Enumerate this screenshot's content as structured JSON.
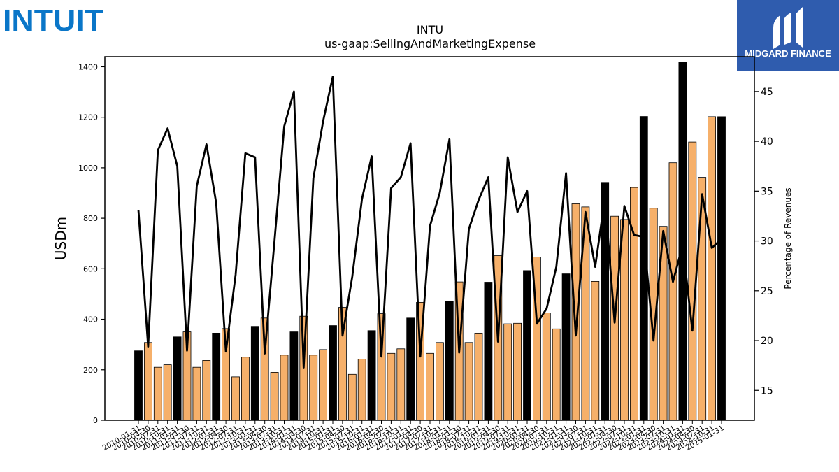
{
  "brand": {
    "left_logo_text": "INTUIT",
    "right_logo_text": "MIDGARD FINANCE",
    "left_logo_color": "#0a76c8",
    "right_logo_bg": "#2f5cae"
  },
  "chart_data": {
    "type": "bar",
    "title": "INTU",
    "subtitle": "us-gaap:SellingAndMarketingExpense",
    "ylabel": "USDm",
    "ylabel_right": "Percentage of Revenues",
    "ylim": [
      0,
      1440
    ],
    "y2lim": [
      12,
      48.5
    ],
    "yticks": [
      0,
      200,
      400,
      600,
      800,
      1000,
      1200,
      1400
    ],
    "y2ticks": [
      15,
      20,
      25,
      30,
      35,
      40,
      45
    ],
    "colors": {
      "annual": "#000000",
      "quarterly": "#f6b06a",
      "line": "#000000"
    },
    "categories": [
      "2010-01-31",
      "2010-04-30",
      "2010-07-31",
      "2010-10-31",
      "2011-01-31",
      "2011-04-30",
      "2011-07-31",
      "2011-10-31",
      "2012-01-31",
      "2012-04-30",
      "2012-07-31",
      "2012-10-31",
      "2013-01-31",
      "2013-04-30",
      "2013-07-31",
      "2013-10-31",
      "2014-01-31",
      "2014-04-30",
      "2014-07-31",
      "2014-10-31",
      "2015-01-31",
      "2015-04-30",
      "2015-07-31",
      "2015-10-31",
      "2016-01-31",
      "2016-04-30",
      "2016-07-31",
      "2016-10-31",
      "2017-01-31",
      "2017-04-30",
      "2017-07-31",
      "2017-10-31",
      "2018-01-31",
      "2018-04-30",
      "2018-07-31",
      "2018-10-31",
      "2019-01-31",
      "2019-04-30",
      "2019-07-31",
      "2019-10-31",
      "2020-01-31",
      "2020-04-30",
      "2020-07-31",
      "2020-10-31",
      "2021-01-31",
      "2021-04-30",
      "2021-07-31",
      "2021-10-31",
      "2022-01-31",
      "2022-04-30",
      "2022-07-31",
      "2022-10-31",
      "2023-01-31",
      "2023-04-30",
      "2023-07-31",
      "2023-10-31",
      "2024-01-31",
      "2024-04-30",
      "2024-07-31",
      "2024-10-31",
      "2025-01-31"
    ],
    "bar_types": [
      "A",
      "Q",
      "Q",
      "Q",
      "A",
      "Q",
      "Q",
      "Q",
      "A",
      "Q",
      "Q",
      "Q",
      "A",
      "Q",
      "Q",
      "Q",
      "A",
      "Q",
      "Q",
      "Q",
      "A",
      "Q",
      "Q",
      "Q",
      "A",
      "Q",
      "Q",
      "Q",
      "A",
      "Q",
      "Q",
      "Q",
      "A",
      "Q",
      "Q",
      "Q",
      "A",
      "Q",
      "Q",
      "Q",
      "A",
      "Q",
      "Q",
      "Q",
      "A",
      "Q",
      "Q",
      "Q",
      "A",
      "Q",
      "Q",
      "Q",
      "A",
      "Q",
      "Q",
      "Q",
      "A",
      "Q",
      "Q",
      "Q",
      "A"
    ],
    "values": [
      275,
      308,
      210,
      220,
      330,
      350,
      210,
      237,
      345,
      363,
      172,
      250,
      372,
      405,
      190,
      258,
      350,
      412,
      258,
      280,
      375,
      447,
      182,
      242,
      355,
      422,
      265,
      283,
      405,
      467,
      265,
      308,
      470,
      548,
      308,
      345,
      547,
      652,
      382,
      384,
      593,
      647,
      425,
      362,
      580,
      857,
      845,
      550,
      942,
      808,
      795,
      922,
      1203,
      840,
      768,
      1020,
      1418,
      1102,
      962,
      1202,
      1202
    ],
    "series": [
      {
        "name": "Percentage of Revenues",
        "values": [
          33.1,
          19.4,
          39.1,
          41.3,
          37.5,
          19.0,
          35.5,
          39.7,
          33.8,
          18.9,
          26.6,
          38.8,
          38.4,
          18.7,
          30.0,
          41.5,
          45.0,
          17.3,
          36.3,
          42.0,
          46.5,
          20.5,
          26.4,
          34.2,
          38.5,
          18.4,
          35.3,
          36.4,
          39.8,
          18.4,
          31.5,
          34.8,
          40.2,
          18.8,
          31.2,
          34.1,
          36.4,
          19.9,
          38.4,
          32.9,
          35.0,
          21.7,
          23.2,
          27.4,
          36.8,
          20.5,
          32.9,
          27.4,
          34.3,
          21.8,
          33.5,
          30.6,
          30.4,
          20.0,
          31.0,
          25.9,
          29.6,
          21.0,
          34.7,
          29.3,
          30.2
        ]
      }
    ],
    "legend": "none",
    "grid": false
  }
}
